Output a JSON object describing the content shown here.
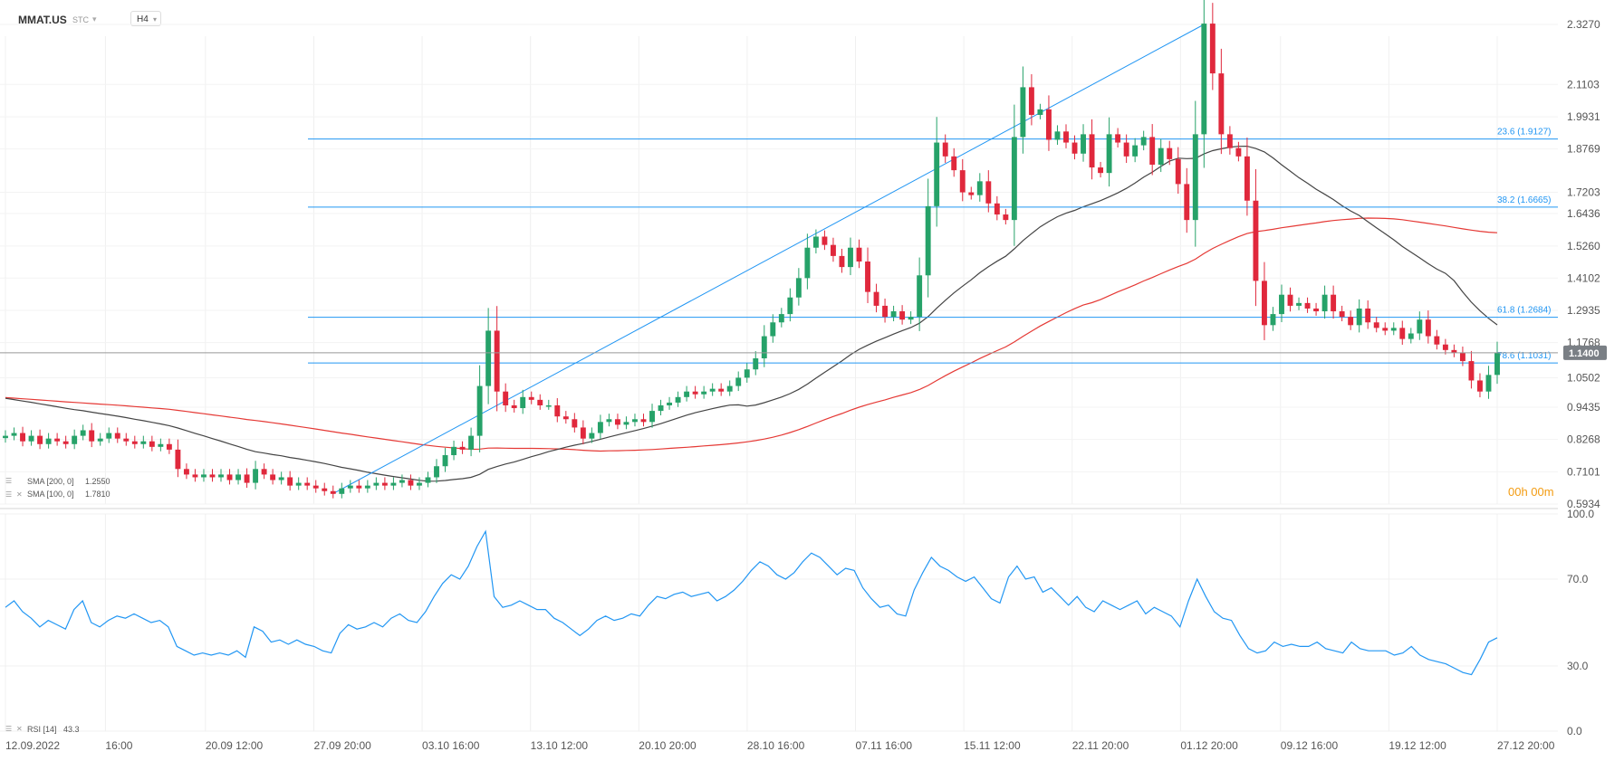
{
  "header": {
    "symbol": "MMAT.US",
    "source": "STC",
    "timeframe": "H4"
  },
  "colors": {
    "bull": "#26a269",
    "bear": "#e0283c",
    "fib": "#2196f3",
    "sma200": "#e53935",
    "sma100": "#444444",
    "rsi": "#2196f3",
    "price_tag": "#7a7f85",
    "timer": "#f39c12"
  },
  "chart_data": [
    {
      "type": "candlestick",
      "price_axis_ticks": [
        "2.3270",
        "2.1103",
        "1.9931",
        "1.8769",
        "1.7203",
        "1.6436",
        "1.5260",
        "1.4102",
        "1.2935",
        "1.1768",
        "1.0502",
        "0.9435",
        "0.8268",
        "0.7101",
        "0.5934"
      ],
      "ylim": [
        0.5934,
        2.327
      ],
      "time_axis_labels": [
        "12.09.2022",
        "16:00",
        "20.09 12:00",
        "27.09 20:00",
        "03.10 16:00",
        "13.10 12:00",
        "20.10 20:00",
        "28.10 16:00",
        "07.11 16:00",
        "15.11 12:00",
        "22.11 20:00",
        "01.12 20:00",
        "09.12 16:00",
        "19.12 12:00",
        "27.12 20:00"
      ],
      "current_price": "1.1400",
      "candle_timer": "00h 00m",
      "fib_levels": [
        {
          "label": "23.6 (1.9127)",
          "value": 1.9127
        },
        {
          "label": "38.2 (1.6665)",
          "value": 1.6665
        },
        {
          "label": "61.8 (1.2684)",
          "value": 1.2684
        },
        {
          "label": "78.6 (1.1031)",
          "value": 1.1031
        }
      ],
      "trend_line": {
        "from": 0.631,
        "to": 2.327
      },
      "legend": [
        {
          "text": "SMA [200, 0]",
          "value": "1.2550"
        },
        {
          "text": "SMA [100, 0]",
          "value": "1.7810"
        }
      ],
      "closes": [
        0.84,
        0.85,
        0.82,
        0.84,
        0.81,
        0.83,
        0.82,
        0.81,
        0.84,
        0.86,
        0.82,
        0.83,
        0.85,
        0.83,
        0.82,
        0.81,
        0.82,
        0.8,
        0.81,
        0.79,
        0.72,
        0.7,
        0.69,
        0.7,
        0.69,
        0.7,
        0.68,
        0.7,
        0.67,
        0.72,
        0.7,
        0.68,
        0.69,
        0.66,
        0.67,
        0.66,
        0.65,
        0.64,
        0.63,
        0.65,
        0.66,
        0.65,
        0.66,
        0.67,
        0.66,
        0.67,
        0.68,
        0.66,
        0.67,
        0.69,
        0.73,
        0.77,
        0.8,
        0.79,
        0.84,
        1.02,
        1.22,
        1.0,
        0.95,
        0.94,
        0.98,
        0.97,
        0.95,
        0.95,
        0.91,
        0.9,
        0.87,
        0.83,
        0.85,
        0.89,
        0.9,
        0.88,
        0.89,
        0.9,
        0.89,
        0.93,
        0.95,
        0.96,
        0.98,
        1.0,
        0.99,
        1.0,
        1.01,
        1.0,
        1.02,
        1.05,
        1.08,
        1.12,
        1.2,
        1.25,
        1.28,
        1.34,
        1.41,
        1.52,
        1.56,
        1.53,
        1.49,
        1.45,
        1.52,
        1.47,
        1.36,
        1.31,
        1.27,
        1.29,
        1.26,
        1.27,
        1.42,
        1.67,
        1.9,
        1.85,
        1.8,
        1.72,
        1.71,
        1.76,
        1.68,
        1.64,
        1.62,
        1.92,
        2.1,
        2.0,
        2.02,
        1.91,
        1.94,
        1.9,
        1.86,
        1.93,
        1.81,
        1.79,
        1.93,
        1.9,
        1.85,
        1.89,
        1.92,
        1.82,
        1.88,
        1.84,
        1.75,
        1.62,
        1.93,
        2.33,
        2.15,
        1.93,
        1.88,
        1.85,
        1.69,
        1.4,
        1.24,
        1.28,
        1.35,
        1.31,
        1.32,
        1.3,
        1.29,
        1.35,
        1.29,
        1.27,
        1.24,
        1.3,
        1.25,
        1.23,
        1.22,
        1.23,
        1.19,
        1.21,
        1.26,
        1.2,
        1.17,
        1.15,
        1.14,
        1.11,
        1.04,
        1.0,
        1.06,
        1.14
      ]
    },
    {
      "type": "line",
      "name": "RSI",
      "legend": {
        "text": "RSI [14]",
        "value": "43.3"
      },
      "axis_ticks": [
        "100.0",
        "70.0",
        "30.0",
        "0.0"
      ],
      "ylim": [
        0,
        100
      ],
      "values": [
        57,
        60,
        55,
        52,
        48,
        51,
        49,
        47,
        56,
        60,
        50,
        48,
        51,
        53,
        52,
        54,
        52,
        50,
        51,
        48,
        39,
        37,
        35,
        36,
        35,
        36,
        35,
        37,
        34,
        48,
        46,
        41,
        42,
        40,
        42,
        40,
        39,
        37,
        36,
        45,
        49,
        47,
        48,
        50,
        48,
        52,
        54,
        51,
        50,
        55,
        62,
        68,
        72,
        70,
        76,
        85,
        92,
        62,
        57,
        58,
        60,
        58,
        56,
        56,
        52,
        50,
        47,
        44,
        47,
        51,
        53,
        51,
        52,
        54,
        53,
        58,
        62,
        61,
        63,
        64,
        62,
        63,
        64,
        60,
        62,
        65,
        69,
        74,
        78,
        76,
        72,
        70,
        73,
        78,
        82,
        80,
        76,
        72,
        75,
        74,
        66,
        61,
        57,
        58,
        54,
        53,
        65,
        73,
        80,
        76,
        74,
        71,
        69,
        71,
        66,
        61,
        59,
        71,
        76,
        70,
        71,
        64,
        66,
        62,
        58,
        62,
        57,
        55,
        60,
        58,
        56,
        58,
        60,
        54,
        57,
        55,
        53,
        48,
        60,
        70,
        62,
        55,
        52,
        51,
        44,
        38,
        36,
        37,
        41,
        39,
        40,
        39,
        39,
        41,
        38,
        37,
        36,
        41,
        38,
        37,
        37,
        37,
        35,
        36,
        39,
        35,
        33,
        32,
        31,
        29,
        27,
        26,
        33,
        41,
        43
      ]
    }
  ]
}
